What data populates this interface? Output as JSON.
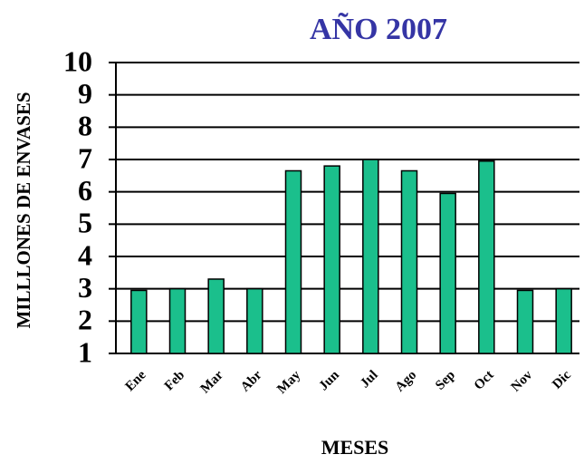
{
  "chart_data": {
    "type": "bar",
    "title": "AÑO 2007",
    "x_label": "MESES",
    "y_label": "MILLLONES DE ENVASES",
    "categories": [
      "Ene",
      "Feb",
      "Mar",
      "Abr",
      "May",
      "Jun",
      "Jul",
      "Ago",
      "Sep",
      "Oct",
      "Nov",
      "Dic"
    ],
    "values": [
      2.95,
      3.0,
      3.3,
      3.0,
      6.65,
      6.8,
      7.0,
      6.65,
      5.95,
      6.95,
      2.95,
      3.0
    ],
    "color": "#1bbf8c",
    "ylim": [
      1,
      10
    ],
    "yticks": [
      1,
      2,
      3,
      4,
      5,
      6,
      7,
      8,
      9,
      10
    ],
    "grid": true
  }
}
